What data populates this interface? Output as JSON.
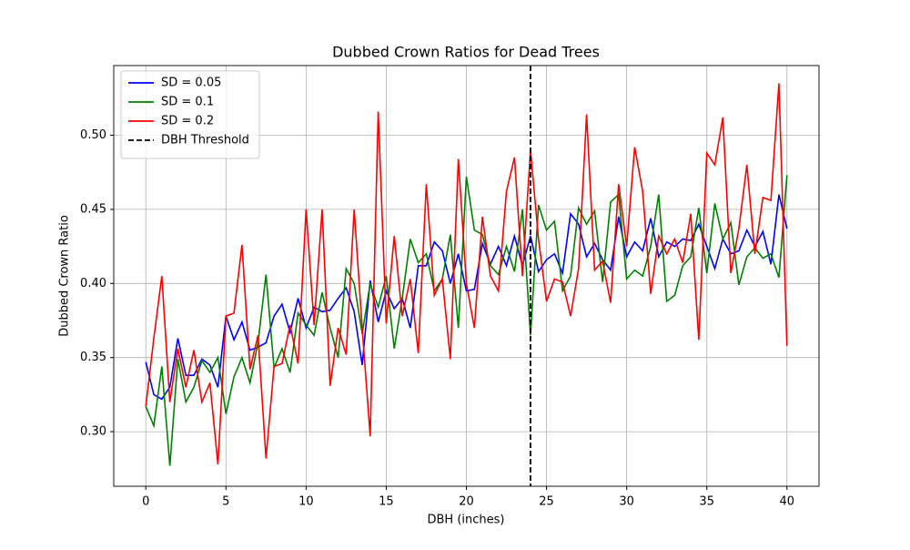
{
  "chart_data": {
    "type": "line",
    "title": "Dubbed Crown Ratios for Dead Trees",
    "x_label": "DBH (inches)",
    "y_label": "Dubbed Crown Ratio",
    "x": [
      0,
      0.5,
      1,
      1.5,
      2,
      2.5,
      3,
      3.5,
      4,
      4.5,
      5,
      5.5,
      6,
      6.5,
      7,
      7.5,
      8,
      8.5,
      9,
      9.5,
      10,
      10.5,
      11,
      11.5,
      12,
      12.5,
      13,
      13.5,
      14,
      14.5,
      15,
      15.5,
      16,
      16.5,
      17,
      17.5,
      18,
      18.5,
      19,
      19.5,
      20,
      20.5,
      21,
      21.5,
      22,
      22.5,
      23,
      23.5,
      24,
      24.5,
      25,
      25.5,
      26,
      26.5,
      27,
      27.5,
      28,
      28.5,
      29,
      29.5,
      30,
      30.5,
      31,
      31.5,
      32,
      32.5,
      33,
      33.5,
      34,
      34.5,
      35,
      35.5,
      36,
      36.5,
      37,
      37.5,
      38,
      38.5,
      39,
      39.5,
      40
    ],
    "series": [
      {
        "name": "SD = 0.05",
        "color": "#0000ff",
        "values": [
          0.347,
          0.325,
          0.322,
          0.33,
          0.363,
          0.338,
          0.338,
          0.349,
          0.345,
          0.33,
          0.378,
          0.362,
          0.374,
          0.355,
          0.357,
          0.36,
          0.378,
          0.386,
          0.367,
          0.39,
          0.37,
          0.384,
          0.381,
          0.382,
          0.39,
          0.397,
          0.381,
          0.345,
          0.402,
          0.374,
          0.395,
          0.383,
          0.39,
          0.37,
          0.412,
          0.412,
          0.428,
          0.422,
          0.4,
          0.42,
          0.395,
          0.396,
          0.427,
          0.413,
          0.425,
          0.412,
          0.432,
          0.412,
          0.432,
          0.408,
          0.416,
          0.42,
          0.407,
          0.447,
          0.44,
          0.418,
          0.427,
          0.416,
          0.409,
          0.445,
          0.418,
          0.428,
          0.422,
          0.444,
          0.418,
          0.428,
          0.425,
          0.43,
          0.429,
          0.44,
          0.425,
          0.41,
          0.43,
          0.42,
          0.422,
          0.436,
          0.425,
          0.435,
          0.413,
          0.46,
          0.437
        ]
      },
      {
        "name": "SD = 0.1",
        "color": "#008000",
        "values": [
          0.317,
          0.304,
          0.344,
          0.277,
          0.349,
          0.32,
          0.33,
          0.348,
          0.34,
          0.35,
          0.312,
          0.337,
          0.35,
          0.333,
          0.36,
          0.406,
          0.343,
          0.356,
          0.34,
          0.38,
          0.372,
          0.365,
          0.394,
          0.37,
          0.35,
          0.41,
          0.4,
          0.366,
          0.4,
          0.384,
          0.405,
          0.356,
          0.39,
          0.43,
          0.414,
          0.42,
          0.395,
          0.403,
          0.433,
          0.37,
          0.472,
          0.436,
          0.433,
          0.412,
          0.406,
          0.425,
          0.408,
          0.45,
          0.365,
          0.453,
          0.436,
          0.442,
          0.395,
          0.405,
          0.451,
          0.44,
          0.449,
          0.401,
          0.455,
          0.46,
          0.403,
          0.409,
          0.405,
          0.425,
          0.46,
          0.388,
          0.392,
          0.412,
          0.418,
          0.451,
          0.407,
          0.454,
          0.43,
          0.441,
          0.399,
          0.418,
          0.424,
          0.417,
          0.42,
          0.404,
          0.473
        ]
      },
      {
        "name": "SD = 0.2",
        "color": "#ff0000",
        "values": [
          0.317,
          0.363,
          0.405,
          0.32,
          0.356,
          0.33,
          0.355,
          0.32,
          0.333,
          0.278,
          0.378,
          0.38,
          0.426,
          0.342,
          0.365,
          0.282,
          0.344,
          0.346,
          0.372,
          0.346,
          0.45,
          0.372,
          0.45,
          0.331,
          0.37,
          0.352,
          0.45,
          0.37,
          0.297,
          0.516,
          0.373,
          0.432,
          0.378,
          0.403,
          0.353,
          0.467,
          0.392,
          0.403,
          0.349,
          0.484,
          0.4,
          0.37,
          0.445,
          0.405,
          0.395,
          0.462,
          0.485,
          0.405,
          0.49,
          0.43,
          0.388,
          0.403,
          0.401,
          0.378,
          0.41,
          0.514,
          0.409,
          0.415,
          0.387,
          0.467,
          0.425,
          0.492,
          0.462,
          0.393,
          0.432,
          0.42,
          0.43,
          0.414,
          0.447,
          0.362,
          0.488,
          0.48,
          0.512,
          0.407,
          0.437,
          0.48,
          0.42,
          0.458,
          0.456,
          0.535,
          0.358
        ]
      }
    ],
    "threshold": {
      "name": "DBH Threshold",
      "x": 24,
      "color": "#000000"
    },
    "xlim": [
      -2,
      42
    ],
    "ylim": [
      0.2632,
      0.547
    ],
    "xticks": [
      0,
      5,
      10,
      15,
      20,
      25,
      30,
      35,
      40
    ],
    "yticks": [
      {
        "value": 0.3,
        "label": "0.30"
      },
      0.35,
      {
        "value": 0.4,
        "label": "0.40"
      },
      0.45,
      {
        "value": 0.5,
        "label": "0.50"
      }
    ],
    "grid": true,
    "legend": "upper left"
  }
}
